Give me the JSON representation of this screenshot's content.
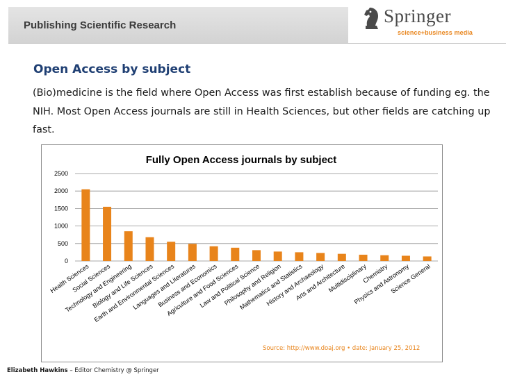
{
  "header": {
    "title": "Publishing Scientific Research",
    "logo_word": "Springer",
    "logo_sub": "science+business media"
  },
  "section": {
    "title": "Open Access by subject",
    "body": "(Bio)medicine is the field where Open Access was first establish because of funding eg. the NIH. Most Open Access journals are still in Health Sciences, but other fields are catching up fast."
  },
  "source": "Source: http://www.doaj.org • date: January 25, 2012",
  "footer": {
    "author": "Elizabeth Hawkins",
    "role": " – Editor Chemistry @ Springer"
  },
  "colors": {
    "bar": "#e8841b",
    "title": "#1f3f73",
    "accent": "#e8841b"
  },
  "chart_data": {
    "type": "bar",
    "title": "Fully Open Access journals by subject",
    "xlabel": "",
    "ylabel": "",
    "ylim": [
      0,
      2500
    ],
    "yticks": [
      0,
      500,
      1000,
      1500,
      2000,
      2500
    ],
    "grid": true,
    "legend": "none",
    "categories": [
      "Health Sciences",
      "Social Sciences",
      "Technology and Engineering",
      "Biology and Life Sciences",
      "Earth and Environmental Sciences",
      "Languages and Literatures",
      "Business and Economics",
      "Agriculture and Food Sciences",
      "Law and Political Science",
      "Philosophy and Religion",
      "Mathematics and Statistics",
      "History and Archaeology",
      "Arts and Architecture",
      "Multidisciplinary",
      "Chemistry",
      "Physics and Astronomy",
      "Science General"
    ],
    "values": [
      2050,
      1550,
      850,
      680,
      550,
      490,
      420,
      380,
      310,
      270,
      250,
      230,
      205,
      180,
      165,
      150,
      130
    ]
  }
}
